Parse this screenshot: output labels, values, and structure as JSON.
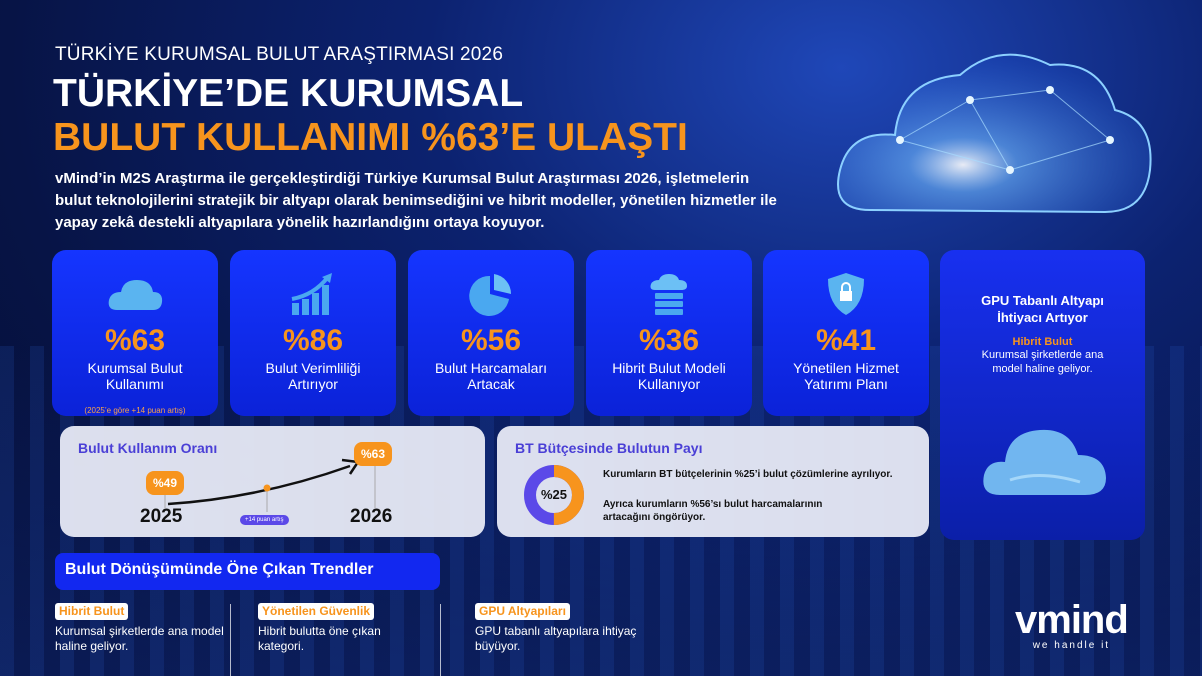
{
  "header": {
    "kicker": "TÜRKİYE KURUMSAL BULUT ARAŞTIRMASI 2026",
    "title_line1": "TÜRKİYE’DE KURUMSAL",
    "title_line2": "BULUT KULLANIMI %63’E ULAŞTI",
    "lead": "vMind’in M2S Araştırma ile gerçekleştirdiği Türkiye Kurumsal Bulut Araştırması 2026, işletmelerin bulut teknolojilerini stratejik bir altyapı olarak benimsediğini ve hibrit modeller, yönetilen hizmetler ile yapay zekâ destekli altyapılara yönelik hazırlandığını ortaya koyuyor."
  },
  "cards": [
    {
      "icon": "cloud-icon",
      "value": "%63",
      "label": "Kurumsal Bulut Kullanımı",
      "note": "(2025’e göre +14 puan artış)"
    },
    {
      "icon": "growth-chart-icon",
      "value": "%86",
      "label": "Bulut Verimliliği Artırıyor"
    },
    {
      "icon": "pie-chart-icon",
      "value": "%56",
      "label": "Bulut Harcamaları Artacak"
    },
    {
      "icon": "cloud-server-icon",
      "value": "%36",
      "label": "Hibrit Bulut Modeli Kullanıyor"
    },
    {
      "icon": "shield-lock-icon",
      "value": "%41",
      "label": "Yönetilen Hizmet Yatırımı Planı"
    }
  ],
  "gpu_card": {
    "title": "GPU Tabanlı Altyapı İhtiyacı Artıyor",
    "subtitle": "Hibrit Bulut",
    "text": "Kurumsal şirketlerde ana model haline geliyor."
  },
  "usage_panel": {
    "title": "Bulut Kullanım Oranı",
    "from_value": "%49",
    "from_year": "2025",
    "to_value": "%63",
    "to_year": "2026",
    "increase": "+14 puan artış"
  },
  "budget_panel": {
    "title": "BT Bütçesinde Bulutun Payı",
    "donut_value": "%25",
    "donut_fraction": 0.25,
    "line1": "Kurumların BT bütçelerinin %25’i bulut çözümlerine ayrılıyor.",
    "line2": "Ayrıca kurumların %56’sı bulut harcamalarının artacağını öngörüyor."
  },
  "trends": {
    "title": "Bulut Dönüşümünde Öne Çıkan Trendler",
    "items": [
      {
        "heading": "Hibrit Bulut",
        "text": "Kurumsal şirketlerde ana model haline geliyor."
      },
      {
        "heading": "Yönetilen Güvenlik",
        "text": "Hibrit bulutta öne çıkan kategori."
      },
      {
        "heading": "GPU Altyapıları",
        "text": "GPU tabanlı altyapılara ihtiyaç büyüyor."
      }
    ]
  },
  "logo": {
    "name": "vmind",
    "tagline": "we handle it"
  },
  "colors": {
    "accent": "#f7941d",
    "card_blue": "#1535ff",
    "panel_title": "#4a3fd6",
    "donut_purple": "#5b49e8"
  }
}
